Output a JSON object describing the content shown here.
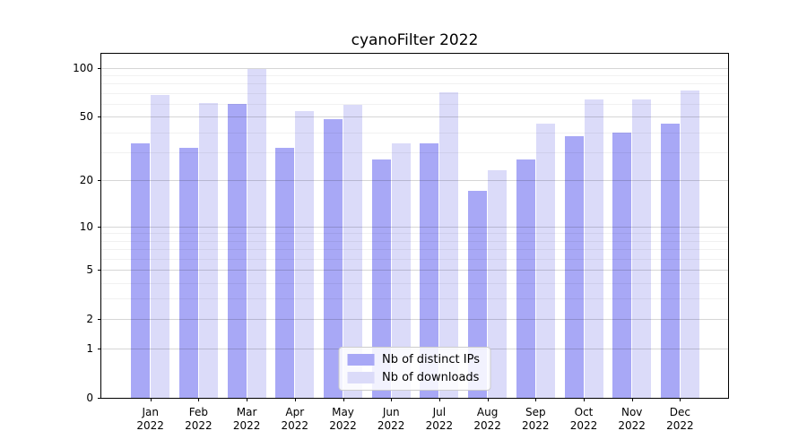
{
  "figure": {
    "title": "cyanoFilter 2022"
  },
  "legend": {
    "items": [
      {
        "label": "Nb of distinct IPs",
        "color": "#a8a8f6"
      },
      {
        "label": "Nb of downloads",
        "color": "#dbdbf9"
      }
    ]
  },
  "chart_data": {
    "type": "bar",
    "title": "cyanoFilter 2022",
    "categories": [
      "Jan 2022",
      "Feb 2022",
      "Mar 2022",
      "Apr 2022",
      "May 2022",
      "Jun 2022",
      "Jul 2022",
      "Aug 2022",
      "Sep 2022",
      "Oct 2022",
      "Nov 2022",
      "Dec 2022"
    ],
    "series": [
      {
        "name": "Nb of distinct IPs",
        "color": "#a8a8f6",
        "values": [
          34,
          32,
          60,
          32,
          48,
          27,
          34,
          17,
          27,
          38,
          40,
          45
        ]
      },
      {
        "name": "Nb of downloads",
        "color": "#dbdbf9",
        "values": [
          68,
          61,
          98,
          54,
          59,
          34,
          71,
          23,
          45,
          64,
          64,
          73
        ]
      }
    ],
    "xlabel": "",
    "ylabel": "",
    "y_scale": "log1p",
    "y_ticks": [
      100,
      50,
      20,
      10,
      5,
      2,
      1,
      0
    ],
    "y_minor_ticks": [
      90,
      80,
      70,
      60,
      40,
      30,
      9,
      8,
      7,
      6,
      4,
      3
    ],
    "ylim": [
      0,
      122
    ],
    "grid": "horizontal",
    "legend_position": "lower center"
  },
  "colors": {
    "grid_major": "rgba(0,0,0,0.16)",
    "grid_minor": "rgba(0,0,0,0.055)",
    "spine": "#000000"
  }
}
